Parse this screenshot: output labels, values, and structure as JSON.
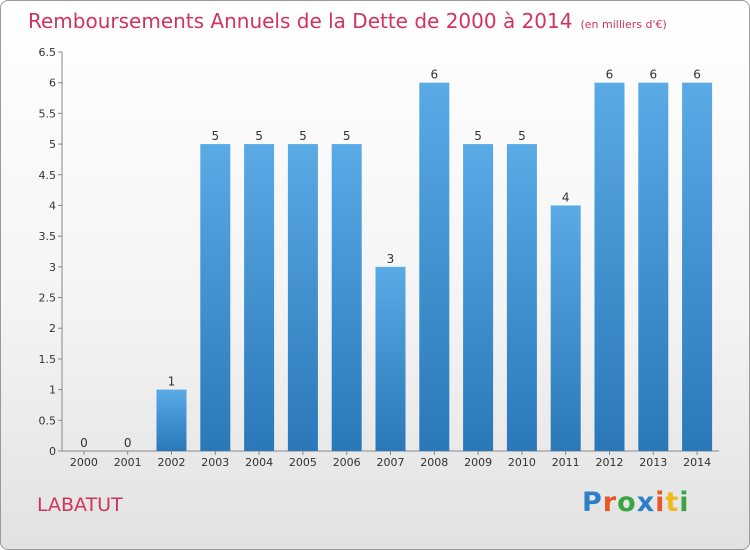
{
  "header": {
    "title": "Remboursements Annuels de la Dette de 2000 à 2014",
    "unit": "(en milliers d'€)"
  },
  "footer": {
    "commune": "LABATUT",
    "logo_letters": [
      {
        "char": "P",
        "color": "#2f7fc8"
      },
      {
        "char": "r",
        "color": "#e8562a"
      },
      {
        "char": "o",
        "color": "#3aa640"
      },
      {
        "char": "x",
        "color": "#2f7fc8"
      },
      {
        "char": "i",
        "color": "#e8562a"
      },
      {
        "char": "t",
        "color": "#f0b81d"
      },
      {
        "char": "i",
        "color": "#3aa640"
      }
    ]
  },
  "chart_data": {
    "type": "bar",
    "title": "Remboursements Annuels de la Dette de 2000 à 2014",
    "subtitle": "(en milliers d'€)",
    "xlabel": "",
    "ylabel": "",
    "categories": [
      "2000",
      "2001",
      "2002",
      "2003",
      "2004",
      "2005",
      "2006",
      "2007",
      "2008",
      "2009",
      "2010",
      "2011",
      "2012",
      "2013",
      "2014"
    ],
    "values": [
      0,
      0,
      1,
      5,
      5,
      5,
      5,
      3,
      6,
      5,
      5,
      4,
      6,
      6,
      6
    ],
    "data_labels": [
      "0",
      "0",
      "1",
      "5",
      "5",
      "5",
      "5",
      "3",
      "6",
      "5",
      "5",
      "4",
      "6",
      "6",
      "6"
    ],
    "ylim": [
      0,
      6.5
    ],
    "yticks": [
      0,
      0.5,
      1,
      1.5,
      2,
      2.5,
      3,
      3.5,
      4,
      4.5,
      5,
      5.5,
      6,
      6.5
    ],
    "ytick_labels": [
      "0",
      "0.5",
      "1",
      "1.5",
      "2",
      "2.5",
      "3",
      "3.5",
      "4",
      "4.5",
      "5",
      "5.5",
      "6",
      "6.5"
    ],
    "grid": false,
    "legend": "none",
    "bar_color_top": "#5aaae6",
    "bar_color_bottom": "#2a78b8",
    "axis_color": "#888888"
  }
}
